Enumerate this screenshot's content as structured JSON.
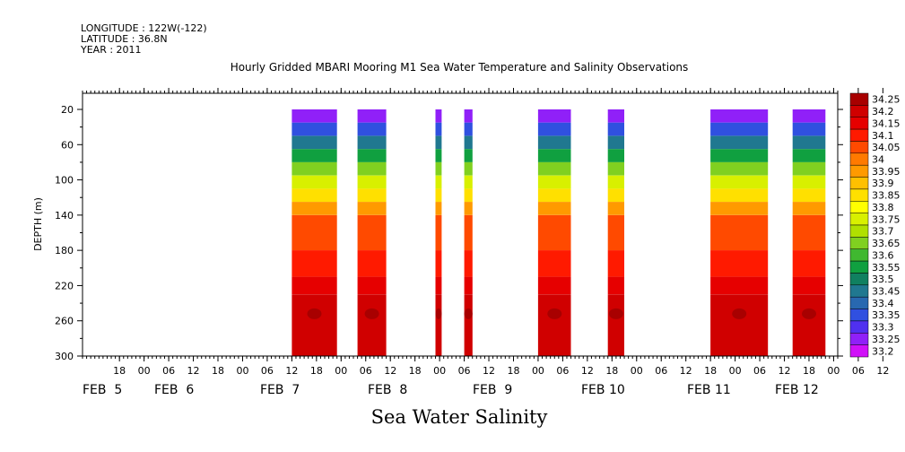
{
  "header": {
    "longitude": "LONGITUDE : 122W(-122)",
    "latitude": "LATITUDE : 36.8N",
    "year": "YEAR : 2011"
  },
  "chart_data": {
    "type": "heatmap",
    "title": "Hourly Gridded MBARI Mooring M1 Sea Water Temperature and Salinity Observations",
    "subtitle": "Sea Water Salinity",
    "ylabel": "DEPTH (m)",
    "xlabel": "",
    "y_axis": {
      "ylim": [
        300,
        0
      ],
      "ticks": [
        20,
        60,
        100,
        140,
        180,
        220,
        260,
        300
      ],
      "units": "m"
    },
    "x_axis": {
      "range_hours": [
        0,
        184
      ],
      "start_label": "FEB 5 00 (axis origin ~ FEB 4 09:00)",
      "hour_ticks": [
        "18",
        "00",
        "06",
        "12",
        "18",
        "00",
        "06",
        "12",
        "18",
        "00",
        "06",
        "12",
        "18",
        "00",
        "06",
        "12",
        "18",
        "00",
        "06",
        "12",
        "18",
        "00",
        "06",
        "12",
        "18",
        "00",
        "06",
        "12",
        "18",
        "00",
        "06",
        "12"
      ],
      "date_labels": [
        "FEB  5",
        "FEB  6",
        "FEB  7",
        "FEB  8",
        "FEB  9",
        "FEB 10",
        "FEB 11",
        "FEB 12"
      ]
    },
    "colorbar": {
      "levels": [
        "34.25",
        "34.2",
        "34.15",
        "34.1",
        "34.05",
        "34",
        "33.95",
        "33.9",
        "33.85",
        "33.8",
        "33.75",
        "33.7",
        "33.65",
        "33.6",
        "33.55",
        "33.5",
        "33.45",
        "33.4",
        "33.35",
        "33.3",
        "33.25",
        "33.2"
      ],
      "colors": [
        "#a80000",
        "#d00000",
        "#e60000",
        "#ff1a00",
        "#ff4a00",
        "#ff7a00",
        "#ff9a00",
        "#ffc000",
        "#ffe000",
        "#ffff00",
        "#d8f000",
        "#b0e000",
        "#80d020",
        "#40b830",
        "#10a040",
        "#108060",
        "#207890",
        "#2868b0",
        "#3050e0",
        "#5030f0",
        "#9020f8",
        "#d010f8"
      ]
    },
    "profile_bands": [
      {
        "depth": [
          20,
          35
        ],
        "salinity": 33.25
      },
      {
        "depth": [
          35,
          50
        ],
        "salinity": 33.35
      },
      {
        "depth": [
          50,
          65
        ],
        "salinity": 33.45
      },
      {
        "depth": [
          65,
          80
        ],
        "salinity": 33.55
      },
      {
        "depth": [
          80,
          95
        ],
        "salinity": 33.65
      },
      {
        "depth": [
          95,
          110
        ],
        "salinity": 33.75
      },
      {
        "depth": [
          110,
          125
        ],
        "salinity": 33.85
      },
      {
        "depth": [
          125,
          140
        ],
        "salinity": 33.95
      },
      {
        "depth": [
          140,
          180
        ],
        "salinity": 34.05
      },
      {
        "depth": [
          180,
          210
        ],
        "salinity": 34.1
      },
      {
        "depth": [
          210,
          230
        ],
        "salinity": 34.15
      },
      {
        "depth": [
          230,
          300
        ],
        "salinity": 34.2
      }
    ],
    "data_segments": [
      {
        "start": "FEB 6 12:00",
        "end": "FEB 6 23:00"
      },
      {
        "start": "FEB 7 04:00",
        "end": "FEB 7 11:00"
      },
      {
        "start": "FEB 7 23:00",
        "end": "FEB 8 00:30"
      },
      {
        "start": "FEB 8 06:00",
        "end": "FEB 8 08:00"
      },
      {
        "start": "FEB 9 00:00",
        "end": "FEB 9 08:00"
      },
      {
        "start": "FEB 9 17:00",
        "end": "FEB 9 21:00"
      },
      {
        "start": "FEB 10 18:00",
        "end": "FEB 11 08:00"
      },
      {
        "start": "FEB 11 14:00",
        "end": "FEB 11 22:00"
      }
    ]
  }
}
